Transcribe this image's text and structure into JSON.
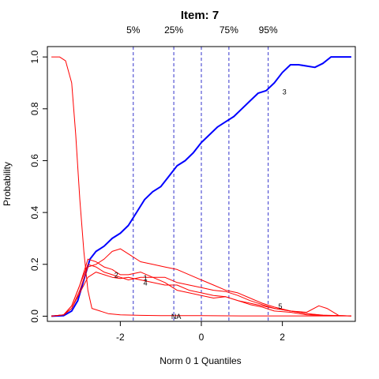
{
  "chart_data": {
    "type": "line",
    "title": "Item:  7",
    "xlabel": "Norm 0 1 Quantiles",
    "ylabel": "Probability",
    "xlim": [
      -3.8,
      3.8
    ],
    "ylim": [
      -0.02,
      1.04
    ],
    "x_ticks": [
      "-2",
      "0",
      "2"
    ],
    "y_ticks": [
      "0.0",
      "0.2",
      "0.4",
      "0.6",
      "0.8",
      "1.0"
    ],
    "quantile_lines": [
      {
        "label": "5%",
        "x": -1.68
      },
      {
        "label": "25%",
        "x": -0.68
      },
      {
        "label": "75%",
        "x": 0.68
      },
      {
        "label": "95%",
        "x": 1.65
      }
    ],
    "colors": {
      "highlight": "#0000ff",
      "options": "#ff0000",
      "quantile": "#3333cc"
    },
    "series": [
      {
        "name": "3",
        "highlight": true,
        "x": [
          -3.7,
          -3.4,
          -3.2,
          -3.05,
          -2.9,
          -2.75,
          -2.6,
          -2.4,
          -2.2,
          -2.0,
          -1.8,
          -1.6,
          -1.4,
          -1.2,
          -1.0,
          -0.8,
          -0.6,
          -0.4,
          -0.2,
          0,
          0.2,
          0.4,
          0.6,
          0.8,
          1.0,
          1.2,
          1.4,
          1.6,
          1.8,
          2.0,
          2.2,
          2.4,
          2.6,
          2.8,
          3.0,
          3.2,
          3.4,
          3.7
        ],
        "y": [
          0,
          0.002,
          0.02,
          0.06,
          0.14,
          0.22,
          0.25,
          0.27,
          0.3,
          0.32,
          0.35,
          0.4,
          0.45,
          0.48,
          0.5,
          0.54,
          0.58,
          0.6,
          0.63,
          0.67,
          0.7,
          0.73,
          0.75,
          0.77,
          0.8,
          0.83,
          0.86,
          0.87,
          0.9,
          0.94,
          0.97,
          0.97,
          0.965,
          0.96,
          0.975,
          1.0,
          1.0,
          1.0
        ]
      },
      {
        "name": "NA",
        "x": [
          -3.7,
          -3.5,
          -3.35,
          -3.2,
          -3.1,
          -3.0,
          -2.9,
          -2.8,
          -2.7,
          -2.5,
          -2.3,
          -2.0,
          -1.5,
          -1.0,
          0,
          1.0,
          2.0,
          3.0,
          3.7
        ],
        "y": [
          1.0,
          1.0,
          0.985,
          0.9,
          0.7,
          0.45,
          0.25,
          0.1,
          0.03,
          0.02,
          0.01,
          0.005,
          0.003,
          0.002,
          0.002,
          0.001,
          0.001,
          0.001,
          0.001
        ]
      },
      {
        "name": "1",
        "x": [
          -3.7,
          -3.4,
          -3.2,
          -3.0,
          -2.8,
          -2.6,
          -2.4,
          -2.2,
          -2.0,
          -1.8,
          -1.5,
          -1.2,
          -0.9,
          -0.6,
          -0.3,
          0,
          0.3,
          0.6,
          0.9,
          1.2,
          1.5,
          1.8,
          2.2,
          2.6,
          3.0,
          3.7
        ],
        "y": [
          0,
          0.005,
          0.04,
          0.12,
          0.2,
          0.19,
          0.17,
          0.16,
          0.15,
          0.14,
          0.15,
          0.15,
          0.13,
          0.1,
          0.09,
          0.08,
          0.07,
          0.075,
          0.06,
          0.045,
          0.035,
          0.02,
          0.015,
          0.005,
          0.003,
          0.001
        ]
      },
      {
        "name": "2",
        "x": [
          -3.7,
          -3.4,
          -3.2,
          -3.0,
          -2.8,
          -2.6,
          -2.4,
          -2.2,
          -2.0,
          -1.8,
          -1.5,
          -1.2,
          -0.9,
          -0.6,
          -0.3,
          0,
          0.3,
          0.6,
          0.9,
          1.2,
          1.5,
          1.8,
          2.2,
          2.6,
          3.0,
          3.7
        ],
        "y": [
          0,
          0.005,
          0.04,
          0.12,
          0.22,
          0.21,
          0.19,
          0.18,
          0.16,
          0.16,
          0.17,
          0.15,
          0.15,
          0.13,
          0.12,
          0.11,
          0.1,
          0.095,
          0.08,
          0.06,
          0.045,
          0.03,
          0.02,
          0.01,
          0.004,
          0.001
        ]
      },
      {
        "name": "4",
        "x": [
          -3.7,
          -3.4,
          -3.2,
          -3.0,
          -2.8,
          -2.6,
          -2.4,
          -2.2,
          -2.0,
          -1.8,
          -1.5,
          -1.2,
          -0.9,
          -0.6,
          -0.3,
          0,
          0.3,
          0.6,
          0.9,
          1.2,
          1.5,
          1.8,
          2.2,
          2.6,
          3.0,
          3.7
        ],
        "y": [
          0,
          0.005,
          0.03,
          0.09,
          0.15,
          0.17,
          0.16,
          0.15,
          0.145,
          0.15,
          0.14,
          0.13,
          0.12,
          0.12,
          0.1,
          0.09,
          0.08,
          0.075,
          0.06,
          0.05,
          0.04,
          0.03,
          0.02,
          0.01,
          0.003,
          0.001
        ]
      },
      {
        "name": "5",
        "x": [
          -3.7,
          -3.4,
          -3.2,
          -3.0,
          -2.8,
          -2.6,
          -2.4,
          -2.2,
          -2.0,
          -1.8,
          -1.5,
          -1.2,
          -0.9,
          -0.6,
          -0.3,
          0,
          0.3,
          0.6,
          0.9,
          1.2,
          1.5,
          1.8,
          2.2,
          2.6,
          2.9,
          3.1,
          3.4,
          3.7
        ],
        "y": [
          0,
          0.005,
          0.03,
          0.1,
          0.19,
          0.2,
          0.22,
          0.25,
          0.26,
          0.24,
          0.21,
          0.2,
          0.19,
          0.18,
          0.16,
          0.14,
          0.12,
          0.1,
          0.09,
          0.07,
          0.05,
          0.035,
          0.02,
          0.015,
          0.04,
          0.03,
          0.002,
          0.001
        ]
      }
    ],
    "series_labels": [
      {
        "text": "3",
        "x": 2.05,
        "y": 0.865
      },
      {
        "text": "2",
        "x": -2.1,
        "y": 0.158
      },
      {
        "text": "1",
        "x": -1.38,
        "y": 0.148
      },
      {
        "text": "4",
        "x": -1.38,
        "y": 0.128
      },
      {
        "text": "5",
        "x": 1.95,
        "y": 0.038
      },
      {
        "text": "NA",
        "x": -0.62,
        "y": -0.001
      }
    ]
  }
}
